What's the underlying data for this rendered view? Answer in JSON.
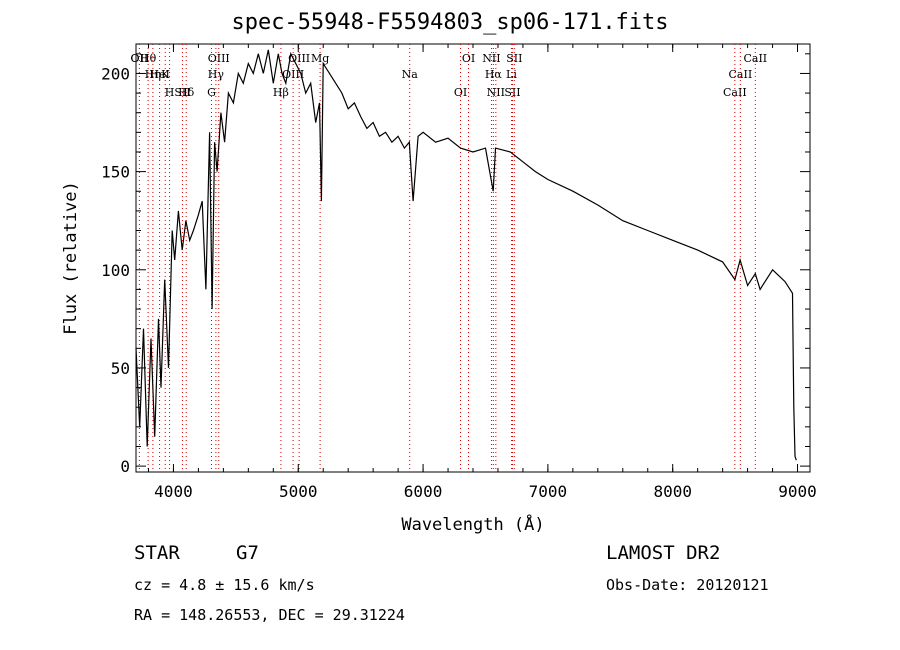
{
  "chart_data": {
    "type": "line",
    "title": "spec-55948-F5594803_sp06-171.fits",
    "xlabel": "Wavelength (Å)",
    "ylabel": "Flux (relative)",
    "xlim": [
      3700,
      9100
    ],
    "ylim": [
      -3,
      215
    ],
    "xticks": [
      4000,
      5000,
      6000,
      7000,
      8000,
      9000
    ],
    "yticks": [
      0,
      50,
      100,
      150,
      200
    ],
    "grid": false,
    "series": [
      {
        "x": [
          3700,
          3730,
          3760,
          3790,
          3820,
          3850,
          3880,
          3900,
          3930,
          3960,
          3990,
          4010,
          4040,
          4070,
          4100,
          4130,
          4160,
          4200,
          4230,
          4260,
          4290,
          4310,
          4330,
          4350,
          4380,
          4410,
          4440,
          4480,
          4520,
          4560,
          4600,
          4640,
          4680,
          4720,
          4760,
          4800,
          4840,
          4870,
          4900,
          4940,
          4980,
          5020,
          5060,
          5100,
          5140,
          5170,
          5185,
          5200,
          5250,
          5300,
          5350,
          5400,
          5450,
          5500,
          5550,
          5600,
          5650,
          5700,
          5750,
          5800,
          5850,
          5890,
          5920,
          5960,
          6000,
          6100,
          6200,
          6300,
          6400,
          6500,
          6562,
          6580,
          6700,
          6800,
          6900,
          7000,
          7200,
          7400,
          7600,
          7800,
          8000,
          8200,
          8400,
          8498,
          8540,
          8600,
          8662,
          8700,
          8800,
          8900,
          8960,
          8970,
          8980,
          8990
        ],
        "y": [
          60,
          20,
          70,
          10,
          65,
          15,
          75,
          40,
          95,
          50,
          120,
          105,
          130,
          110,
          125,
          115,
          120,
          128,
          135,
          90,
          170,
          80,
          165,
          150,
          180,
          165,
          190,
          185,
          200,
          195,
          205,
          200,
          210,
          200,
          212,
          195,
          210,
          200,
          195,
          210,
          205,
          200,
          190,
          195,
          175,
          185,
          135,
          205,
          200,
          195,
          190,
          182,
          185,
          178,
          172,
          175,
          168,
          170,
          165,
          168,
          162,
          165,
          135,
          168,
          170,
          165,
          167,
          162,
          160,
          162,
          140,
          162,
          160,
          155,
          150,
          146,
          140,
          133,
          125,
          120,
          115,
          110,
          104,
          95,
          105,
          92,
          98,
          90,
          100,
          94,
          88,
          30,
          5,
          3
        ]
      }
    ],
    "annotations": [
      {
        "text": "Hθ",
        "x": 3797
      },
      {
        "text": "K",
        "x": 3934
      },
      {
        "text": "Hδ",
        "x": 4102
      },
      {
        "text": "OII",
        "x": 3727
      },
      {
        "text": "HeI",
        "x": 3889
      },
      {
        "text": "SII",
        "x": 4072
      },
      {
        "text": "OII",
        "x": 3727
      },
      {
        "text": "Hη",
        "x": 3835
      },
      {
        "text": "H",
        "x": 3969
      },
      {
        "text": "OIII",
        "x": 4363
      },
      {
        "text": "Hγ",
        "x": 4340
      },
      {
        "text": "G",
        "x": 4305
      },
      {
        "text": "OIII",
        "x": 5007
      },
      {
        "text": "OIII",
        "x": 4959
      },
      {
        "text": "Hβ",
        "x": 4861
      },
      {
        "text": "Mg",
        "x": 5175
      },
      {
        "text": "Na",
        "x": 5893
      },
      {
        "text": "OI",
        "x": 6300
      },
      {
        "text": "OI",
        "x": 6364
      },
      {
        "text": "Hα",
        "x": 6563
      },
      {
        "text": "SII",
        "x": 6716
      },
      {
        "text": "NII",
        "x": 6548
      },
      {
        "text": "Li",
        "x": 6708
      },
      {
        "text": "NII",
        "x": 6583
      },
      {
        "text": "SII",
        "x": 6731
      },
      {
        "text": "CaII",
        "x": 8542
      },
      {
        "text": "CaII",
        "x": 8498
      },
      {
        "text": "CaII",
        "x": 8662
      }
    ],
    "line_markers": [
      3727,
      3797,
      3835,
      3889,
      3934,
      3969,
      4072,
      4102,
      4305,
      4340,
      4363,
      4861,
      4959,
      5007,
      5175,
      5893,
      6300,
      6364,
      6548,
      6563,
      6583,
      6708,
      6716,
      6731,
      8498,
      8542,
      8662
    ]
  },
  "info": {
    "object_class": "STAR",
    "subclass": "G7",
    "survey": "LAMOST DR2",
    "cz": "cz = 4.8 ± 15.6 km/s",
    "obs_date": "Obs-Date: 20120121",
    "coords": "RA = 148.26553, DEC =  29.31224"
  },
  "colors": {
    "spectrum": "#000000",
    "line_markers": "#cc0000",
    "background": "#ffffff"
  }
}
